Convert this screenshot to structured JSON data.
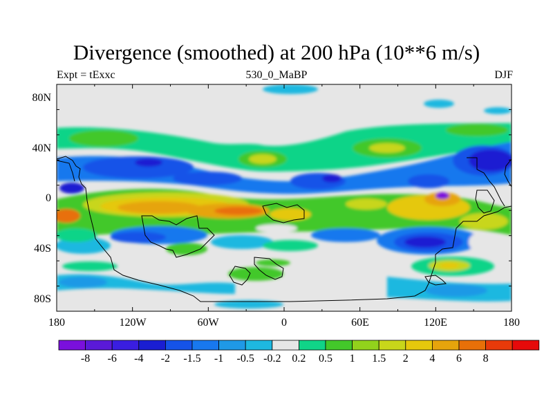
{
  "title": "Divergence (smoothed) at 200 hPa (10**6 m/s)",
  "subtitle_left": "Expt = tExxc",
  "subtitle_center": "530_0_MaBP",
  "subtitle_right": "DJF",
  "lat_labels": [
    "80N",
    "40N",
    "0",
    "40S",
    "80S"
  ],
  "lon_labels": [
    "180",
    "120W",
    "60W",
    "0",
    "60E",
    "120E",
    "180"
  ],
  "colorbar": {
    "colors": [
      "#7a10dc",
      "#5a1ad8",
      "#3a1ee0",
      "#1a1ed2",
      "#1553e8",
      "#1878ee",
      "#1f99e6",
      "#1eb8e0",
      "#e6e6e6",
      "#10d488",
      "#43c82a",
      "#92d21c",
      "#c8d61a",
      "#e5c80c",
      "#e6a40c",
      "#e87008",
      "#e83a0a",
      "#e60a0a"
    ],
    "labels": [
      "-8",
      "-6",
      "-4",
      "-2",
      "-1.5",
      "-1",
      "-0.5",
      "-0.2",
      "0.2",
      "0.5",
      "1",
      "1.5",
      "2",
      "4",
      "6",
      "8"
    ]
  }
}
